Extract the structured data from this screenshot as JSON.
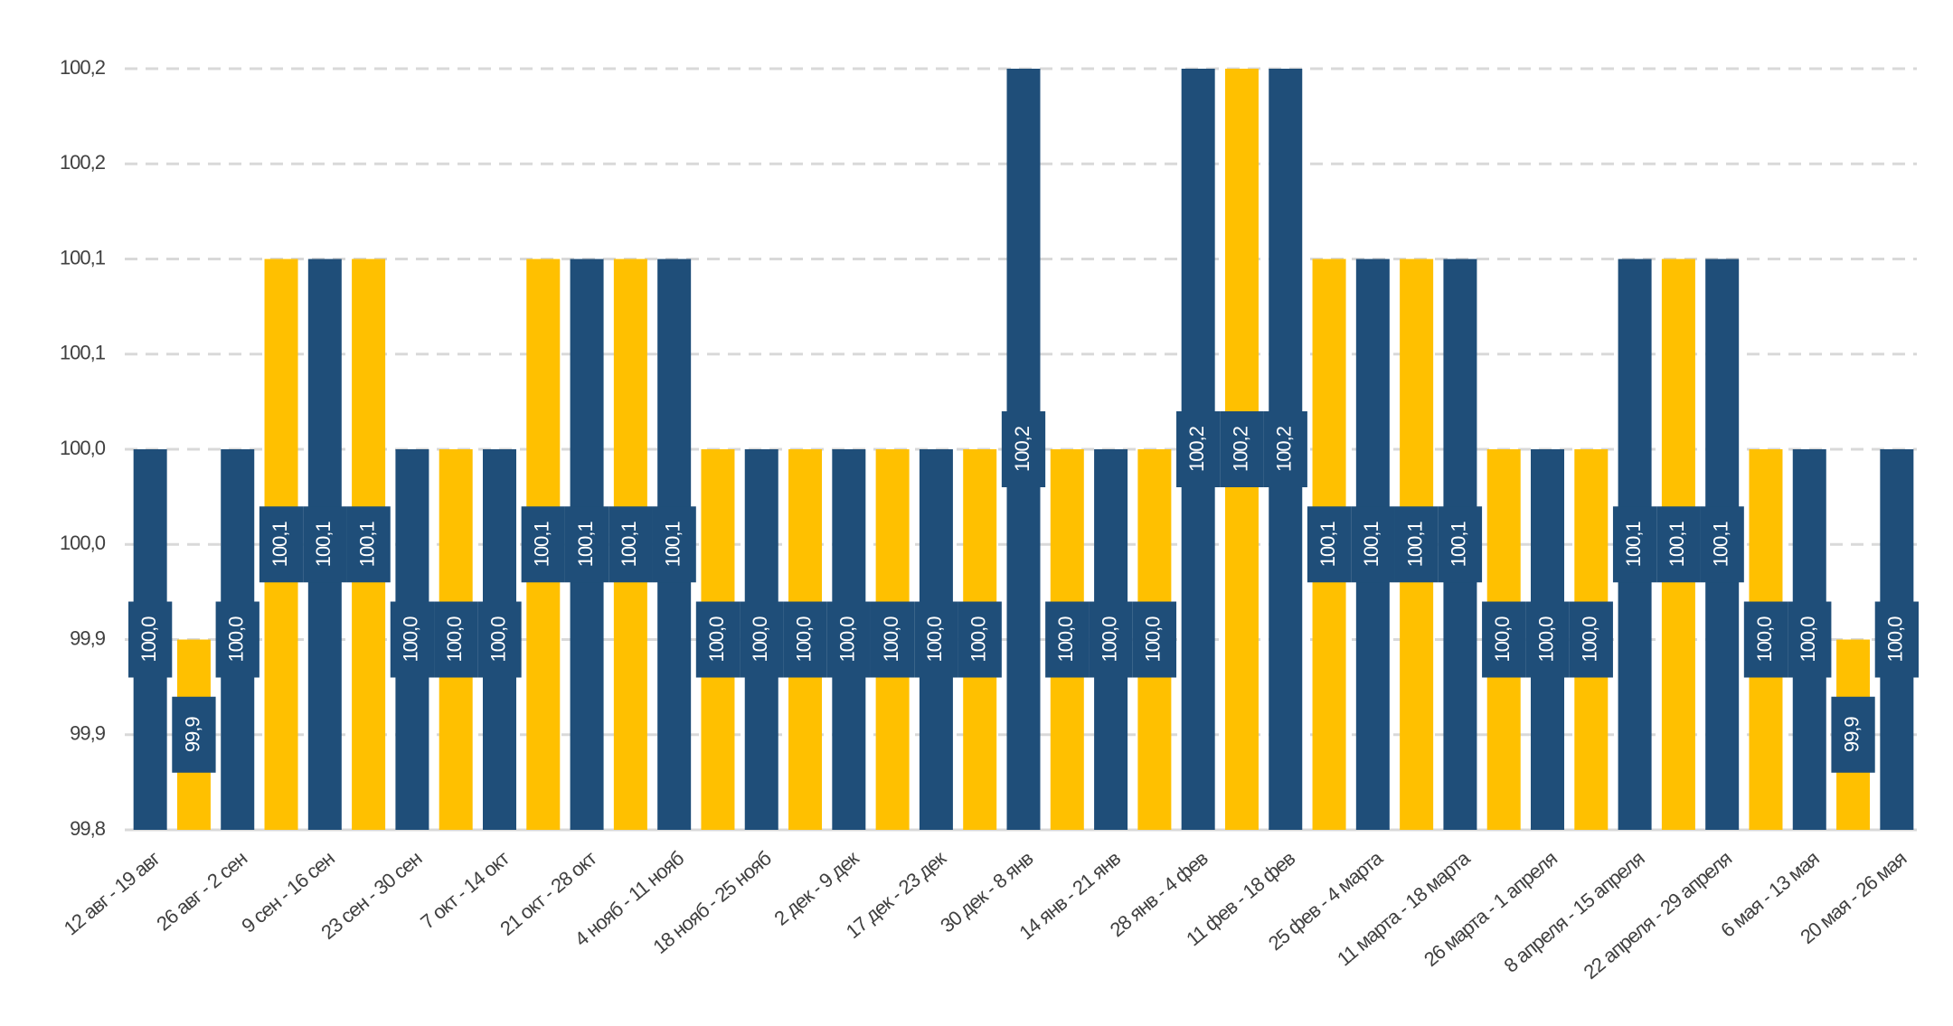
{
  "chart_data": {
    "type": "bar",
    "categories": [
      "12 авг - 19 авг",
      null,
      "26 авг - 2 сен",
      null,
      "9 сен - 16 сен",
      null,
      "23 сен - 30 сен",
      null,
      "7 окт - 14 окт",
      null,
      "21 окт - 28 окт",
      null,
      "4 нояб - 11 нояб",
      null,
      "18 нояб - 25 нояб",
      null,
      "2 дек - 9 дек",
      null,
      "17 дек - 23 дек",
      null,
      "30 дек - 8 янв",
      null,
      "14 янв - 21 янв",
      null,
      "28 янв - 4 фев",
      null,
      "11 фев - 18 фев",
      null,
      "25 фев - 4 марта",
      null,
      "11 марта - 18 марта",
      null,
      "26 марта - 1 апреля",
      null,
      "8 апреля - 15 апреля",
      null,
      "22 апреля - 29 апреля",
      null,
      "6 мая - 13 мая",
      null,
      "20 мая - 26 мая"
    ],
    "values": [
      100.0,
      99.9,
      100.0,
      100.1,
      100.1,
      100.1,
      100.0,
      100.0,
      100.0,
      100.1,
      100.1,
      100.1,
      100.1,
      100.0,
      100.0,
      100.0,
      100.0,
      100.0,
      100.0,
      100.0,
      100.2,
      100.0,
      100.0,
      100.0,
      100.2,
      100.2,
      100.2,
      100.1,
      100.1,
      100.1,
      100.1,
      100.0,
      100.0,
      100.0,
      100.1,
      100.1,
      100.1,
      100.0,
      100.0,
      99.9,
      100.0
    ],
    "value_labels": [
      "100,0",
      "99,9",
      "100,0",
      "100,1",
      "100,1",
      "100,1",
      "100,0",
      "100,0",
      "100,0",
      "100,1",
      "100,1",
      "100,1",
      "100,1",
      "100,0",
      "100,0",
      "100,0",
      "100,0",
      "100,0",
      "100,0",
      "100,0",
      "100,2",
      "100,0",
      "100,0",
      "100,0",
      "100,2",
      "100,2",
      "100,2",
      "100,1",
      "100,1",
      "100,1",
      "100,1",
      "100,0",
      "100,0",
      "100,0",
      "100,1",
      "100,1",
      "100,1",
      "100,0",
      "100,0",
      "99,9",
      "100,0"
    ],
    "colors": [
      "#1f4e79",
      "#ffc000"
    ],
    "label_color": "#1f4e79",
    "ylim": [
      99.8,
      100.2
    ],
    "yticks": [
      {
        "value": 99.8,
        "label": "99,8"
      },
      {
        "value": 99.85,
        "label": "99,9"
      },
      {
        "value": 99.9,
        "label": "99,9"
      },
      {
        "value": 99.95,
        "label": "100,0"
      },
      {
        "value": 100.0,
        "label": "100,0"
      },
      {
        "value": 100.05,
        "label": "100,1"
      },
      {
        "value": 100.1,
        "label": "100,1"
      },
      {
        "value": 100.15,
        "label": "100,2"
      },
      {
        "value": 100.2,
        "label": "100,2"
      }
    ],
    "grid": true
  }
}
